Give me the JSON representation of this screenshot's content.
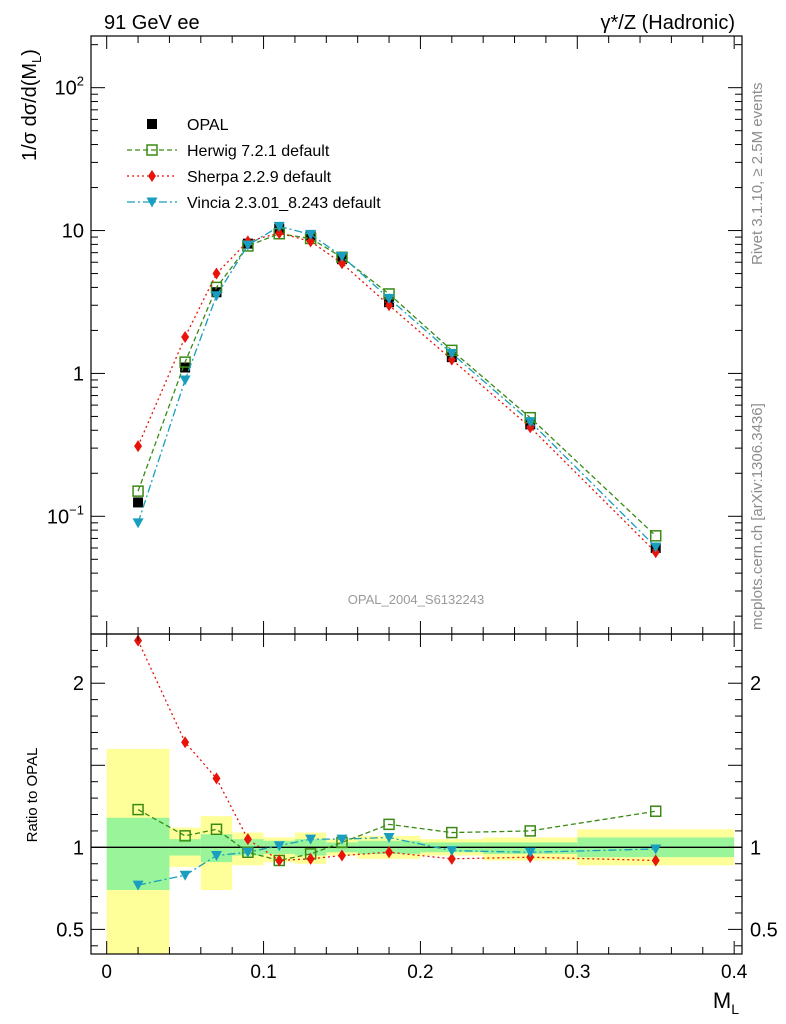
{
  "chart_data": {
    "type": "line",
    "header": {
      "left": "91 GeV ee",
      "right": "γ*/Z (Hadronic)"
    },
    "side_labels": {
      "upper": "Rivet 3.1.10, ≥ 2.5M events",
      "lower": "mcplots.cern.ch [arXiv:1306.3436]"
    },
    "analysis_label": "OPAL_2004_S6132243",
    "xlabel": "M_L",
    "xlim": [
      -0.01,
      0.405
    ],
    "x_ticks": [
      0,
      0.1,
      0.2,
      0.3,
      0.4
    ],
    "x_tick_labels": [
      "0",
      "0.1",
      "0.2",
      "0.3",
      "0.4"
    ],
    "main": {
      "ylabel": "1/σ dσ/d(M_L)",
      "yscale": "log",
      "ylim": [
        0.015,
        230
      ],
      "y_tick_labels": [
        {
          "value": 100,
          "base": "10",
          "exp": "2"
        },
        {
          "value": 10,
          "base": "10",
          "exp": ""
        },
        {
          "value": 1,
          "base": "1",
          "exp": ""
        },
        {
          "value": 0.1,
          "base": "10",
          "exp": "−1"
        }
      ]
    },
    "ratio": {
      "ylabel": "Ratio to OPAL",
      "ylim": [
        0.35,
        2.3
      ],
      "y_ticks": [
        0.5,
        1,
        2
      ],
      "y_tick_labels": [
        "0.5",
        "1",
        "2"
      ]
    },
    "x_bins": [
      [
        0,
        0.04
      ],
      [
        0.04,
        0.06
      ],
      [
        0.06,
        0.08
      ],
      [
        0.08,
        0.1
      ],
      [
        0.1,
        0.12
      ],
      [
        0.12,
        0.14
      ],
      [
        0.14,
        0.16
      ],
      [
        0.16,
        0.2
      ],
      [
        0.2,
        0.24
      ],
      [
        0.24,
        0.3
      ],
      [
        0.3,
        0.4
      ]
    ],
    "x": [
      0.02,
      0.05,
      0.07,
      0.09,
      0.11,
      0.13,
      0.15,
      0.18,
      0.22,
      0.27,
      0.35
    ],
    "band_yellow": [
      [
        0.35,
        1.6
      ],
      [
        0.88,
        1.12
      ],
      [
        0.74,
        1.19
      ],
      [
        0.89,
        1.09
      ],
      [
        0.91,
        1.06
      ],
      [
        0.9,
        1.09
      ],
      [
        0.95,
        1.05
      ],
      [
        0.93,
        1.07
      ],
      [
        0.95,
        1.05
      ],
      [
        0.92,
        1.06
      ],
      [
        0.89,
        1.11
      ]
    ],
    "band_green": [
      [
        0.74,
        1.18
      ],
      [
        0.95,
        1.05
      ],
      [
        0.91,
        1.08
      ],
      [
        0.95,
        1.05
      ],
      [
        0.96,
        1.04
      ],
      [
        0.95,
        1.05
      ],
      [
        0.97,
        1.03
      ],
      [
        0.96,
        1.04
      ],
      [
        0.97,
        1.03
      ],
      [
        0.96,
        1.03
      ],
      [
        0.94,
        1.06
      ]
    ],
    "series": [
      {
        "name": "OPAL",
        "color": "#000000",
        "marker": "square-filled",
        "line": "none",
        "values": [
          0.125,
          1.1,
          3.7,
          8.1,
          10.3,
          9.2,
          6.3,
          3.15,
          1.3,
          0.44,
          0.06
        ],
        "ratio": [
          1,
          1,
          1,
          1,
          1,
          1,
          1,
          1,
          1,
          1,
          1
        ]
      },
      {
        "name": "Herwig 7.2.1 default",
        "color": "#3a8a14",
        "marker": "square-open",
        "line": "dashed",
        "values": [
          0.15,
          1.2,
          4.0,
          7.8,
          9.5,
          8.8,
          6.5,
          3.6,
          1.45,
          0.49,
          0.073
        ],
        "ratio": [
          1.23,
          1.07,
          1.11,
          0.97,
          0.92,
          0.96,
          1.03,
          1.14,
          1.09,
          1.1,
          1.22
        ]
      },
      {
        "name": "Sherpa 2.2.9 default",
        "color": "#e8140a",
        "marker": "diamond",
        "line": "dotted",
        "values": [
          0.31,
          1.8,
          5.0,
          8.4,
          9.6,
          8.4,
          5.9,
          3.0,
          1.25,
          0.42,
          0.056
        ],
        "ratio": [
          2.26,
          1.64,
          1.42,
          1.05,
          0.92,
          0.93,
          0.95,
          0.97,
          0.93,
          0.94,
          0.92
        ]
      },
      {
        "name": "Vincia 2.3.01_8.243 default",
        "color": "#1a9ebf",
        "marker": "triangle-down",
        "line": "dashdot",
        "values": [
          0.09,
          0.9,
          3.5,
          7.9,
          10.7,
          9.4,
          6.6,
          3.35,
          1.38,
          0.46,
          0.061
        ],
        "ratio": [
          0.77,
          0.83,
          0.95,
          0.97,
          1.01,
          1.05,
          1.05,
          1.06,
          0.98,
          0.97,
          0.99
        ]
      }
    ]
  }
}
